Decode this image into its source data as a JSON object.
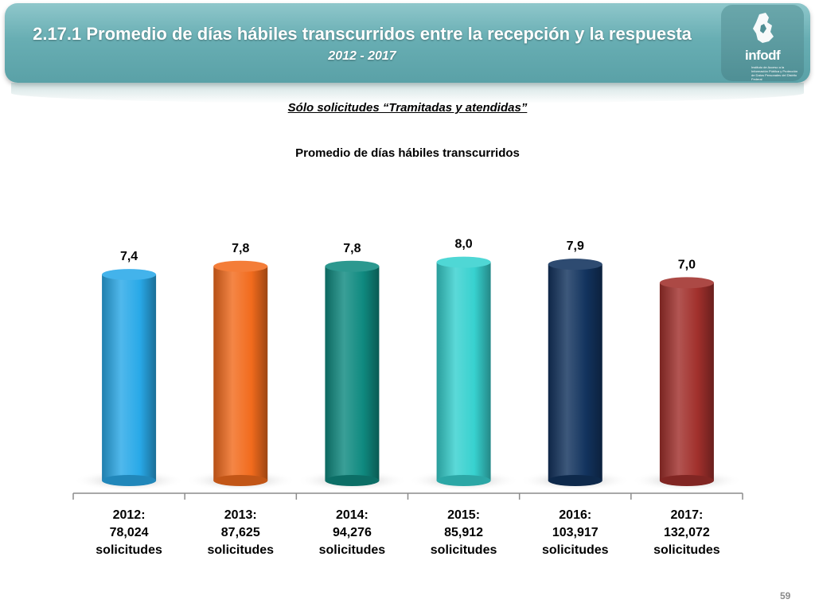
{
  "header": {
    "title": "2.17.1 Promedio de días hábiles transcurridos entre la recepción y la respuesta",
    "subtitle": "2012 - 2017",
    "logo_text": "infodf",
    "logo_tagline": "Instituto de Acceso a la Información Pública y Protección de Datos Personales del Distrito Federal"
  },
  "filter_note": "Sólo solicitudes “Tramitadas y atendidas”",
  "chart_data": {
    "type": "bar",
    "title": "Promedio de días hábiles transcurridos",
    "xlabel": "",
    "ylabel": "",
    "ylim": [
      0,
      8.5
    ],
    "grid": false,
    "categories": [
      [
        "2012:",
        "78,024",
        "solicitudes"
      ],
      [
        "2013:",
        "87,625",
        "solicitudes"
      ],
      [
        "2014:",
        "94,276",
        "solicitudes"
      ],
      [
        "2015:",
        "85,912",
        "solicitudes"
      ],
      [
        "2016:",
        "103,917",
        "solicitudes"
      ],
      [
        "2017:",
        "132,072",
        "solicitudes"
      ]
    ],
    "values": [
      7.4,
      7.8,
      7.8,
      8.0,
      7.9,
      7.0
    ],
    "value_labels": [
      "7,4",
      "7,8",
      "7,8",
      "8,0",
      "7,9",
      "7,0"
    ],
    "colors": [
      "#29a9e8",
      "#f26b1d",
      "#0f8a80",
      "#37d1cf",
      "#12335e",
      "#a1302c"
    ]
  },
  "footer": {
    "page_number": "59"
  }
}
